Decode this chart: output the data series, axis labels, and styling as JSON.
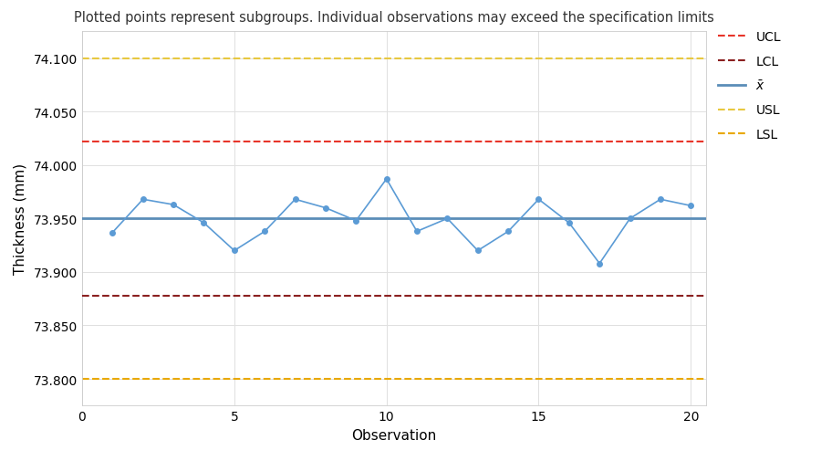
{
  "title": "Plotted points represent subgroups. Individual observations may exceed the specification limits",
  "xlabel": "Observation",
  "ylabel": "Thickness (mm)",
  "x_values": [
    1,
    2,
    3,
    4,
    5,
    6,
    7,
    8,
    9,
    10,
    11,
    12,
    13,
    14,
    15,
    16,
    17,
    18,
    19,
    20
  ],
  "y_values": [
    73.937,
    73.968,
    73.963,
    73.946,
    73.92,
    73.938,
    73.968,
    73.96,
    73.948,
    73.987,
    73.938,
    73.95,
    73.92,
    73.938,
    73.968,
    73.946,
    73.908,
    73.95,
    73.968,
    73.962
  ],
  "xbar": 73.95,
  "UCL": 74.022,
  "LCL": 73.878,
  "USL": 74.1,
  "LSL": 73.8,
  "line_color": "#5B9BD5",
  "xbar_color": "#5B8DB8",
  "UCL_color": "#E8352A",
  "LCL_color": "#8B2020",
  "USL_color": "#E8C840",
  "LSL_color": "#E8A800",
  "xlim": [
    0,
    20.5
  ],
  "ylim": [
    73.775,
    74.125
  ],
  "yticks": [
    73.8,
    73.85,
    73.9,
    73.95,
    74.0,
    74.05,
    74.1
  ],
  "xticks": [
    0,
    5,
    10,
    15,
    20
  ],
  "background_color": "#FFFFFF",
  "grid_color": "#E0E0E0",
  "title_fontsize": 10.5,
  "axis_label_fontsize": 11,
  "tick_fontsize": 10,
  "legend_fontsize": 10
}
